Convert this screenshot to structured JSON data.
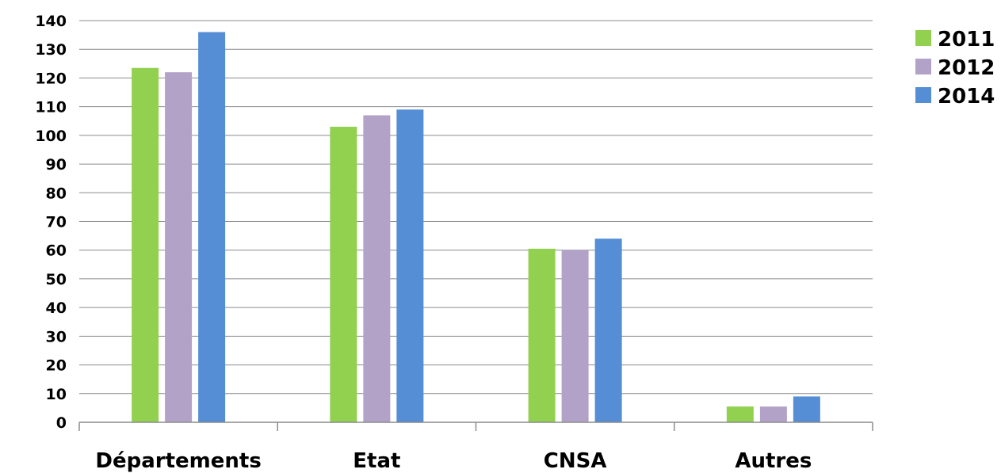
{
  "chart_data": {
    "type": "bar",
    "categories": [
      "Départements",
      "Etat",
      "CNSA",
      "Autres"
    ],
    "series": [
      {
        "name": "2011",
        "values": [
          123.5,
          103,
          60.5,
          5.5
        ],
        "color": "#92D050"
      },
      {
        "name": "2012",
        "values": [
          122,
          107,
          60,
          5.5
        ],
        "color": "#B3A2C7"
      },
      {
        "name": "2014",
        "values": [
          136,
          109,
          64,
          9
        ],
        "color": "#558ED5"
      }
    ],
    "title": "",
    "xlabel": "",
    "ylabel": "",
    "ylim": [
      0,
      140
    ],
    "yticks": [
      "0",
      "10",
      "20",
      "30",
      "40",
      "50",
      "60",
      "70",
      "80",
      "90",
      "100",
      "110",
      "120",
      "130",
      "140"
    ],
    "grid": true,
    "legend_position": "top-right"
  }
}
